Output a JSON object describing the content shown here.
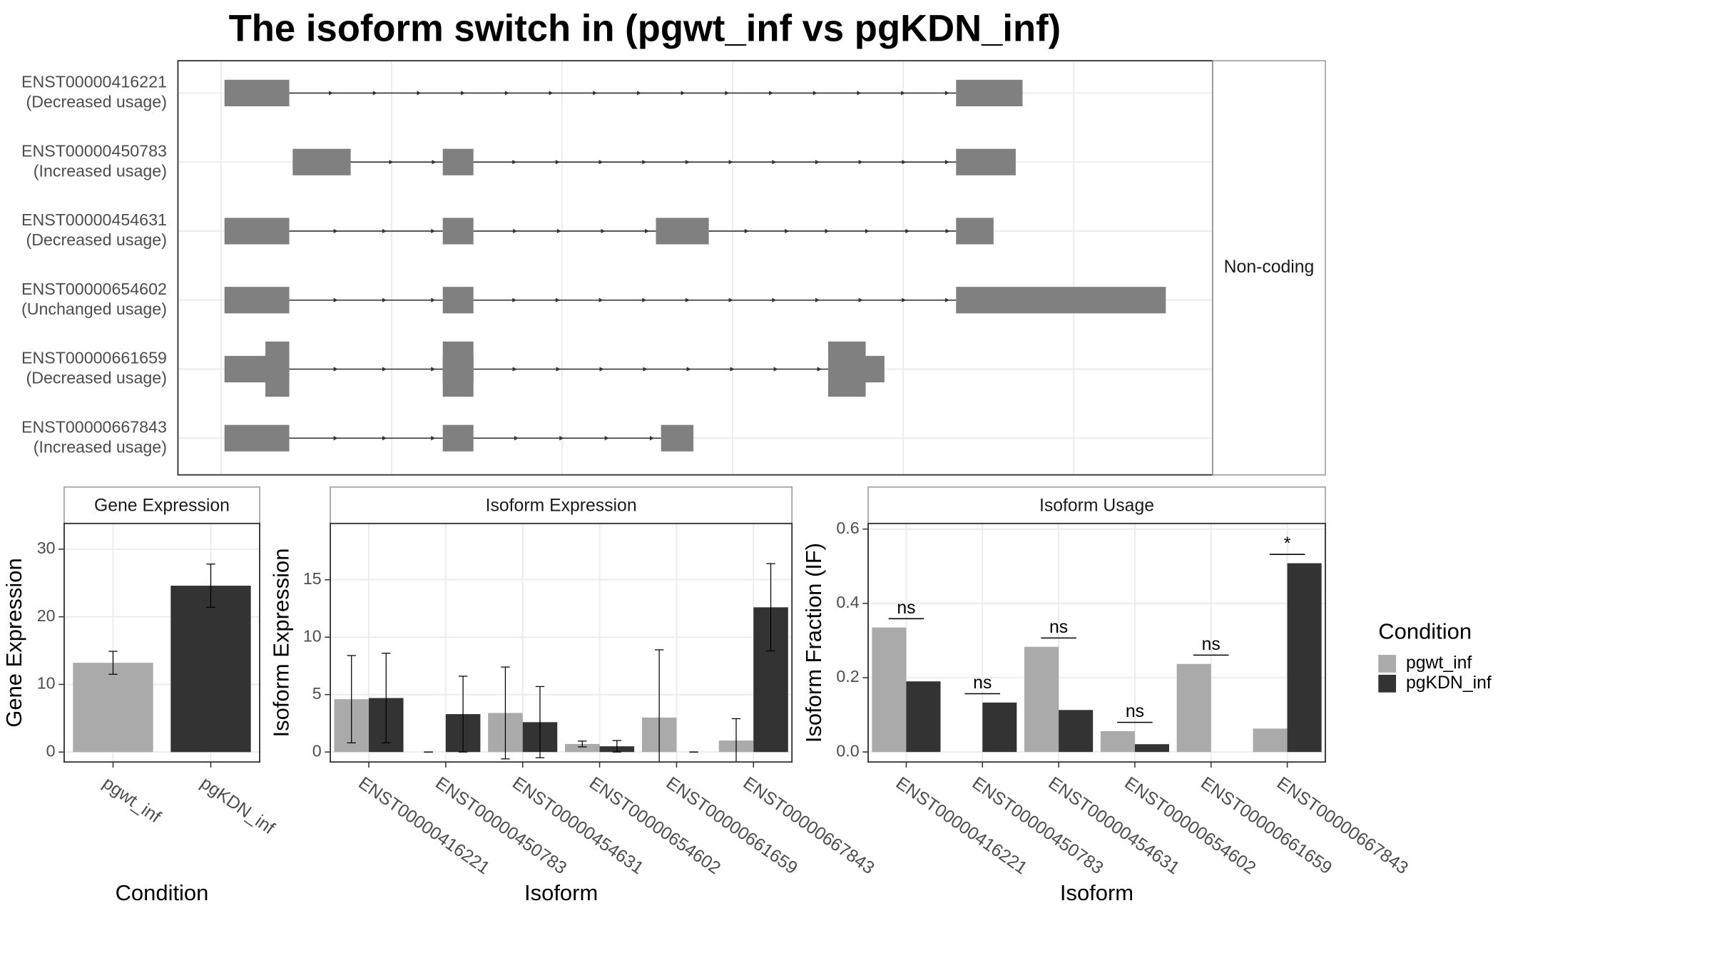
{
  "title": "The isoform switch in  (pgwt_inf vs pgKDN_inf)",
  "legend": {
    "title": "Condition"
  },
  "chart_data": [
    {
      "type": "isoform-structure",
      "categories": [
        "ENST00000416221",
        "ENST00000450783",
        "ENST00000454631",
        "ENST00000654602",
        "ENST00000661659",
        "ENST00000667843"
      ],
      "usage_labels": [
        "(Decreased usage)",
        "(Increased usage)",
        "(Decreased usage)",
        "(Unchanged usage)",
        "(Decreased usage)",
        "(Increased usage)"
      ],
      "exons": [
        [
          [
            0.02,
            0.4
          ],
          [
            4.31,
            4.7
          ]
        ],
        [
          [
            0.42,
            0.76
          ],
          [
            1.3,
            1.48
          ],
          [
            4.31,
            4.66
          ]
        ],
        [
          [
            0.02,
            0.4
          ],
          [
            1.3,
            1.48
          ],
          [
            2.55,
            2.86
          ],
          [
            4.31,
            4.53
          ]
        ],
        [
          [
            0.02,
            0.4
          ],
          [
            1.3,
            1.48
          ],
          [
            4.31,
            5.54
          ]
        ],
        [
          [
            0.02,
            0.4
          ],
          [
            1.3,
            1.48
          ],
          [
            3.56,
            3.89
          ]
        ],
        [
          [
            0.02,
            0.4
          ],
          [
            1.3,
            1.48
          ],
          [
            2.58,
            2.77
          ]
        ]
      ],
      "coding": [
        [],
        [],
        [],
        [],
        [
          [
            0.26,
            0.4
          ],
          [
            1.3,
            1.48
          ],
          [
            3.56,
            3.78
          ]
        ],
        []
      ],
      "color": "#808080",
      "facet_label": "Non-coding",
      "xlim": [
        -0.253,
        5.815
      ],
      "xticks": [
        0,
        1,
        2,
        3,
        4,
        5
      ],
      "grid": true
    },
    {
      "type": "bar",
      "facet_label": "Gene Expression",
      "x_label": "Condition",
      "y_label": "Gene Expression",
      "categories": [
        "pgwt_inf",
        "pgKDN_inf"
      ],
      "values": [
        13.2,
        24.6
      ],
      "errors": [
        1.7,
        3.2
      ],
      "colors": [
        "#aaaaaa",
        "#333333"
      ],
      "ylim": [
        -1.47,
        33.8
      ],
      "yticks": [
        0,
        10,
        20,
        30
      ],
      "grid": true
    },
    {
      "type": "grouped-bar",
      "facet_label": "Isoform Expression",
      "x_label": "Isoform",
      "y_label": "Isoform Expression",
      "categories": [
        "ENST00000416221",
        "ENST00000450783",
        "ENST00000454631",
        "ENST00000654602",
        "ENST00000661659",
        "ENST00000667843"
      ],
      "series": [
        {
          "name": "pgwt_inf",
          "color": "#aaaaaa",
          "values": [
            4.6,
            0,
            3.4,
            0.7,
            3.0,
            1.0
          ],
          "errors": [
            3.8,
            0,
            4.0,
            0.25,
            5.9,
            1.9
          ]
        },
        {
          "name": "pgKDN_inf",
          "color": "#333333",
          "values": [
            4.7,
            3.3,
            2.6,
            0.5,
            0,
            12.6
          ],
          "errors": [
            3.9,
            3.3,
            3.1,
            0.5,
            0,
            3.8
          ]
        }
      ],
      "ylim": [
        -0.87,
        19.9
      ],
      "yticks": [
        0,
        5,
        10,
        15
      ],
      "grid": true
    },
    {
      "type": "grouped-bar",
      "facet_label": "Isoform Usage",
      "x_label": "Isoform",
      "y_label": "Isoform Fraction (IF)",
      "categories": [
        "ENST00000416221",
        "ENST00000450783",
        "ENST00000454631",
        "ENST00000654602",
        "ENST00000661659",
        "ENST00000667843"
      ],
      "series": [
        {
          "name": "pgwt_inf",
          "color": "#aaaaaa",
          "values": [
            0.335,
            0,
            0.283,
            0.056,
            0.237,
            0.063
          ]
        },
        {
          "name": "pgKDN_inf",
          "color": "#333333",
          "values": [
            0.19,
            0.133,
            0.113,
            0.021,
            0,
            0.508
          ]
        }
      ],
      "significance": [
        "ns",
        "ns",
        "ns",
        "ns",
        "ns",
        "*"
      ],
      "ylim": [
        -0.027,
        0.615
      ],
      "yticks": [
        {
          "value": 0,
          "label": "0.0"
        },
        0.2,
        0.4,
        0.6
      ],
      "grid": true
    }
  ]
}
